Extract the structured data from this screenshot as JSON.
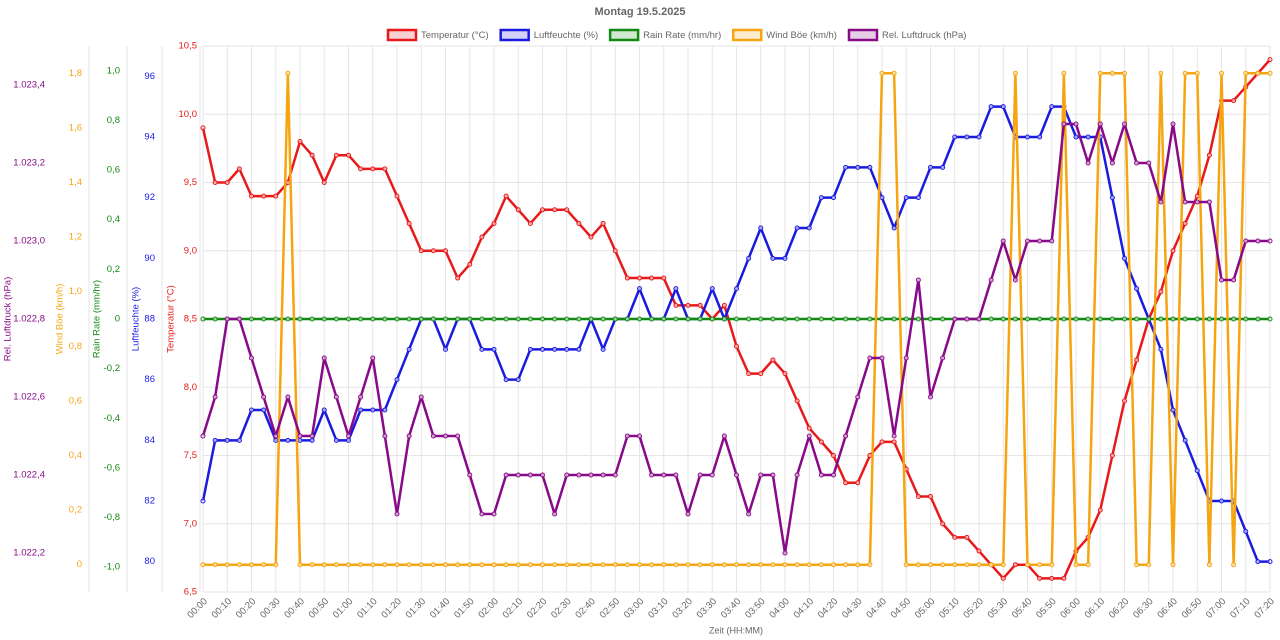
{
  "chart_data": {
    "type": "line",
    "title": "Montag 19.5.2025",
    "xlabel": "Zeit (HH:MM)",
    "grid": true,
    "categories": [
      "00:00",
      null,
      "00:10",
      null,
      "00:20",
      null,
      "00:30",
      null,
      "00:40",
      null,
      "00:50",
      null,
      "01:00",
      null,
      "01:10",
      null,
      "01:20",
      null,
      "01:30",
      null,
      "01:40",
      null,
      "01:50",
      null,
      "02:00",
      null,
      "02:10",
      null,
      "02:20",
      null,
      "02:30",
      null,
      "02:40",
      null,
      "02:50",
      null,
      "03:00",
      null,
      "03:10",
      null,
      "03:20",
      null,
      "03:30",
      null,
      "03:40",
      null,
      "03:50",
      null,
      "04:00",
      null,
      "04:10",
      null,
      "04:20",
      null,
      "04:30",
      null,
      "04:40",
      null,
      "04:50",
      null,
      "05:00",
      null,
      "05:10",
      null,
      "05:20",
      null,
      "05:30",
      null,
      "05:40",
      null,
      "05:50",
      null,
      "06:00",
      null,
      "06:10",
      null,
      "06:20",
      null,
      "06:30",
      null,
      "06:40",
      null,
      "06:50",
      null,
      "07:00",
      null,
      "07:10",
      null,
      "07:20"
    ],
    "axes": [
      {
        "label": "Temperatur (°C)",
        "color": "#e8191a",
        "ylim": [
          6.5,
          10.5
        ],
        "yticks": [
          {
            "value": 6.5,
            "label": "6,5"
          },
          {
            "value": 7,
            "label": "7,0"
          },
          {
            "value": 7.5,
            "label": "7,5"
          },
          {
            "value": 8,
            "label": "8,0"
          },
          {
            "value": 8.5,
            "label": "8,5"
          },
          {
            "value": 9,
            "label": "9,0"
          },
          {
            "value": 9.5,
            "label": "9,5"
          },
          {
            "value": 10,
            "label": "10,0"
          },
          {
            "value": 10.5,
            "label": "10,5"
          }
        ]
      },
      {
        "label": "Luftfeuchte (%)",
        "color": "#1a1ae0",
        "ylim": [
          79,
          97
        ],
        "yticks": [
          80,
          82,
          84,
          86,
          88,
          90,
          92,
          94,
          96
        ]
      },
      {
        "label": "Rain Rate (mm/hr)",
        "color": "#128a12",
        "ylim": [
          -1.1,
          1.1
        ],
        "yticks": [
          {
            "value": -1,
            "label": "-1,0"
          },
          {
            "value": -0.8,
            "label": "-0,8"
          },
          {
            "value": -0.6,
            "label": "-0,6"
          },
          {
            "value": -0.4,
            "label": "-0,4"
          },
          {
            "value": -0.2,
            "label": "-0,2"
          },
          0,
          {
            "value": 0.2,
            "label": "0,2"
          },
          {
            "value": 0.4,
            "label": "0,4"
          },
          {
            "value": 0.6,
            "label": "0,6"
          },
          {
            "value": 0.8,
            "label": "0,8"
          },
          {
            "value": 1,
            "label": "1,0"
          }
        ]
      },
      {
        "label": "Wind Böe (km/h)",
        "color": "#f5a511",
        "ylim": [
          -0.1,
          1.9
        ],
        "yticks": [
          0,
          {
            "value": 0.2,
            "label": "0,2"
          },
          {
            "value": 0.4,
            "label": "0,4"
          },
          {
            "value": 0.6,
            "label": "0,6"
          },
          {
            "value": 0.8,
            "label": "0,8"
          },
          {
            "value": 1,
            "label": "1,0"
          },
          {
            "value": 1.2,
            "label": "1,2"
          },
          {
            "value": 1.4,
            "label": "1,4"
          },
          {
            "value": 1.6,
            "label": "1,6"
          },
          {
            "value": 1.8,
            "label": "1,8"
          }
        ]
      },
      {
        "label": "Rel. Luftdruck (hPa)",
        "color": "#880a88",
        "ylim": [
          1022.1,
          1023.5
        ],
        "yticks": [
          {
            "value": 1022.2,
            "label": "1.022,2"
          },
          {
            "value": 1022.4,
            "label": "1.022,4"
          },
          {
            "value": 1022.6,
            "label": "1.022,6"
          },
          {
            "value": 1022.8,
            "label": "1.022,8"
          },
          {
            "value": 1023,
            "label": "1.023,0"
          },
          {
            "value": 1023.2,
            "label": "1.023,2"
          },
          {
            "value": 1023.4,
            "label": "1.023,4"
          }
        ]
      }
    ],
    "series": [
      {
        "name": "Temperatur (°C)",
        "color": "#e8191a",
        "axis": 0,
        "values": [
          9.9,
          9.5,
          9.5,
          9.6,
          9.4,
          9.4,
          9.4,
          9.5,
          9.8,
          9.7,
          9.5,
          9.7,
          9.7,
          9.6,
          9.6,
          9.6,
          9.4,
          9.2,
          9.0,
          9.0,
          9.0,
          8.8,
          8.9,
          9.1,
          9.2,
          9.4,
          9.3,
          9.2,
          9.3,
          9.3,
          9.3,
          9.2,
          9.1,
          9.2,
          9.0,
          8.8,
          8.8,
          8.8,
          8.8,
          8.6,
          8.6,
          8.6,
          8.5,
          8.6,
          8.3,
          8.1,
          8.1,
          8.2,
          8.1,
          7.9,
          7.7,
          7.6,
          7.5,
          7.3,
          7.3,
          7.5,
          7.6,
          7.6,
          7.4,
          7.2,
          7.2,
          7.0,
          6.9,
          6.9,
          6.8,
          6.7,
          6.6,
          6.7,
          6.7,
          6.6,
          6.6,
          6.6,
          6.8,
          6.9,
          7.1,
          7.5,
          7.9,
          8.2,
          8.5,
          8.7,
          9.0,
          9.2,
          9.4,
          9.7,
          10.1,
          10.1,
          10.2,
          10.3,
          10.4
        ]
      },
      {
        "name": "Luftfeuchte (%)",
        "color": "#1a1ae0",
        "axis": 1,
        "values": [
          82,
          84,
          84,
          84,
          85,
          85,
          84,
          84,
          84,
          84,
          85,
          84,
          84,
          85,
          85,
          85,
          86,
          87,
          88,
          88,
          87,
          88,
          88,
          87,
          87,
          86,
          86,
          87,
          87,
          87,
          87,
          87,
          88,
          87,
          88,
          88,
          89,
          88,
          88,
          89,
          88,
          88,
          89,
          88,
          89,
          90,
          91,
          90,
          90,
          91,
          91,
          92,
          92,
          93,
          93,
          93,
          92,
          91,
          92,
          92,
          93,
          93,
          94,
          94,
          94,
          95,
          95,
          94,
          94,
          94,
          95,
          95,
          94,
          94,
          94,
          92,
          90,
          89,
          88,
          87,
          85,
          84,
          83,
          82,
          82,
          82,
          81,
          80,
          80
        ]
      },
      {
        "name": "Rain Rate (mm/hr)",
        "color": "#128a12",
        "axis": 2,
        "values": [
          0,
          0,
          0,
          0,
          0,
          0,
          0,
          0,
          0,
          0,
          0,
          0,
          0,
          0,
          0,
          0,
          0,
          0,
          0,
          0,
          0,
          0,
          0,
          0,
          0,
          0,
          0,
          0,
          0,
          0,
          0,
          0,
          0,
          0,
          0,
          0,
          0,
          0,
          0,
          0,
          0,
          0,
          0,
          0,
          0,
          0,
          0,
          0,
          0,
          0,
          0,
          0,
          0,
          0,
          0,
          0,
          0,
          0,
          0,
          0,
          0,
          0,
          0,
          0,
          0,
          0,
          0,
          0,
          0,
          0,
          0,
          0,
          0,
          0,
          0,
          0,
          0,
          0,
          0,
          0,
          0,
          0,
          0,
          0,
          0,
          0,
          0,
          0,
          0
        ]
      },
      {
        "name": "Wind Böe (km/h)",
        "color": "#f5a511",
        "axis": 3,
        "values": [
          0,
          0,
          0,
          0,
          0,
          0,
          0,
          1.8,
          0,
          0,
          0,
          0,
          0,
          0,
          0,
          0,
          0,
          0,
          0,
          0,
          0,
          0,
          0,
          0,
          0,
          0,
          0,
          0,
          0,
          0,
          0,
          0,
          0,
          0,
          0,
          0,
          0,
          0,
          0,
          0,
          0,
          0,
          0,
          0,
          0,
          0,
          0,
          0,
          0,
          0,
          0,
          0,
          0,
          0,
          0,
          0,
          1.8,
          1.8,
          0,
          0,
          0,
          0,
          0,
          0,
          0,
          0,
          0,
          1.8,
          0,
          0,
          0,
          1.8,
          0,
          0,
          1.8,
          1.8,
          1.8,
          0,
          0,
          1.8,
          0,
          1.8,
          1.8,
          0,
          1.8,
          0,
          1.8,
          1.8,
          1.8
        ]
      },
      {
        "name": "Rel. Luftdruck (hPa)",
        "color": "#880a88",
        "axis": 4,
        "values": [
          1022.5,
          1022.6,
          1022.8,
          1022.8,
          1022.7,
          1022.6,
          1022.5,
          1022.6,
          1022.5,
          1022.5,
          1022.7,
          1022.6,
          1022.5,
          1022.6,
          1022.7,
          1022.5,
          1022.3,
          1022.5,
          1022.6,
          1022.5,
          1022.5,
          1022.5,
          1022.4,
          1022.3,
          1022.3,
          1022.4,
          1022.4,
          1022.4,
          1022.4,
          1022.3,
          1022.4,
          1022.4,
          1022.4,
          1022.4,
          1022.4,
          1022.5,
          1022.5,
          1022.4,
          1022.4,
          1022.4,
          1022.3,
          1022.4,
          1022.4,
          1022.5,
          1022.4,
          1022.3,
          1022.4,
          1022.4,
          1022.2,
          1022.4,
          1022.5,
          1022.4,
          1022.4,
          1022.5,
          1022.6,
          1022.7,
          1022.7,
          1022.5,
          1022.7,
          1022.9,
          1022.6,
          1022.7,
          1022.8,
          1022.8,
          1022.8,
          1022.9,
          1023.0,
          1022.9,
          1023.0,
          1023.0,
          1023.0,
          1023.3,
          1023.3,
          1023.2,
          1023.3,
          1023.2,
          1023.3,
          1023.2,
          1023.2,
          1023.1,
          1023.3,
          1023.1,
          1023.1,
          1023.1,
          1022.9,
          1022.9,
          1023.0,
          1023.0,
          1023.0
        ]
      }
    ]
  }
}
